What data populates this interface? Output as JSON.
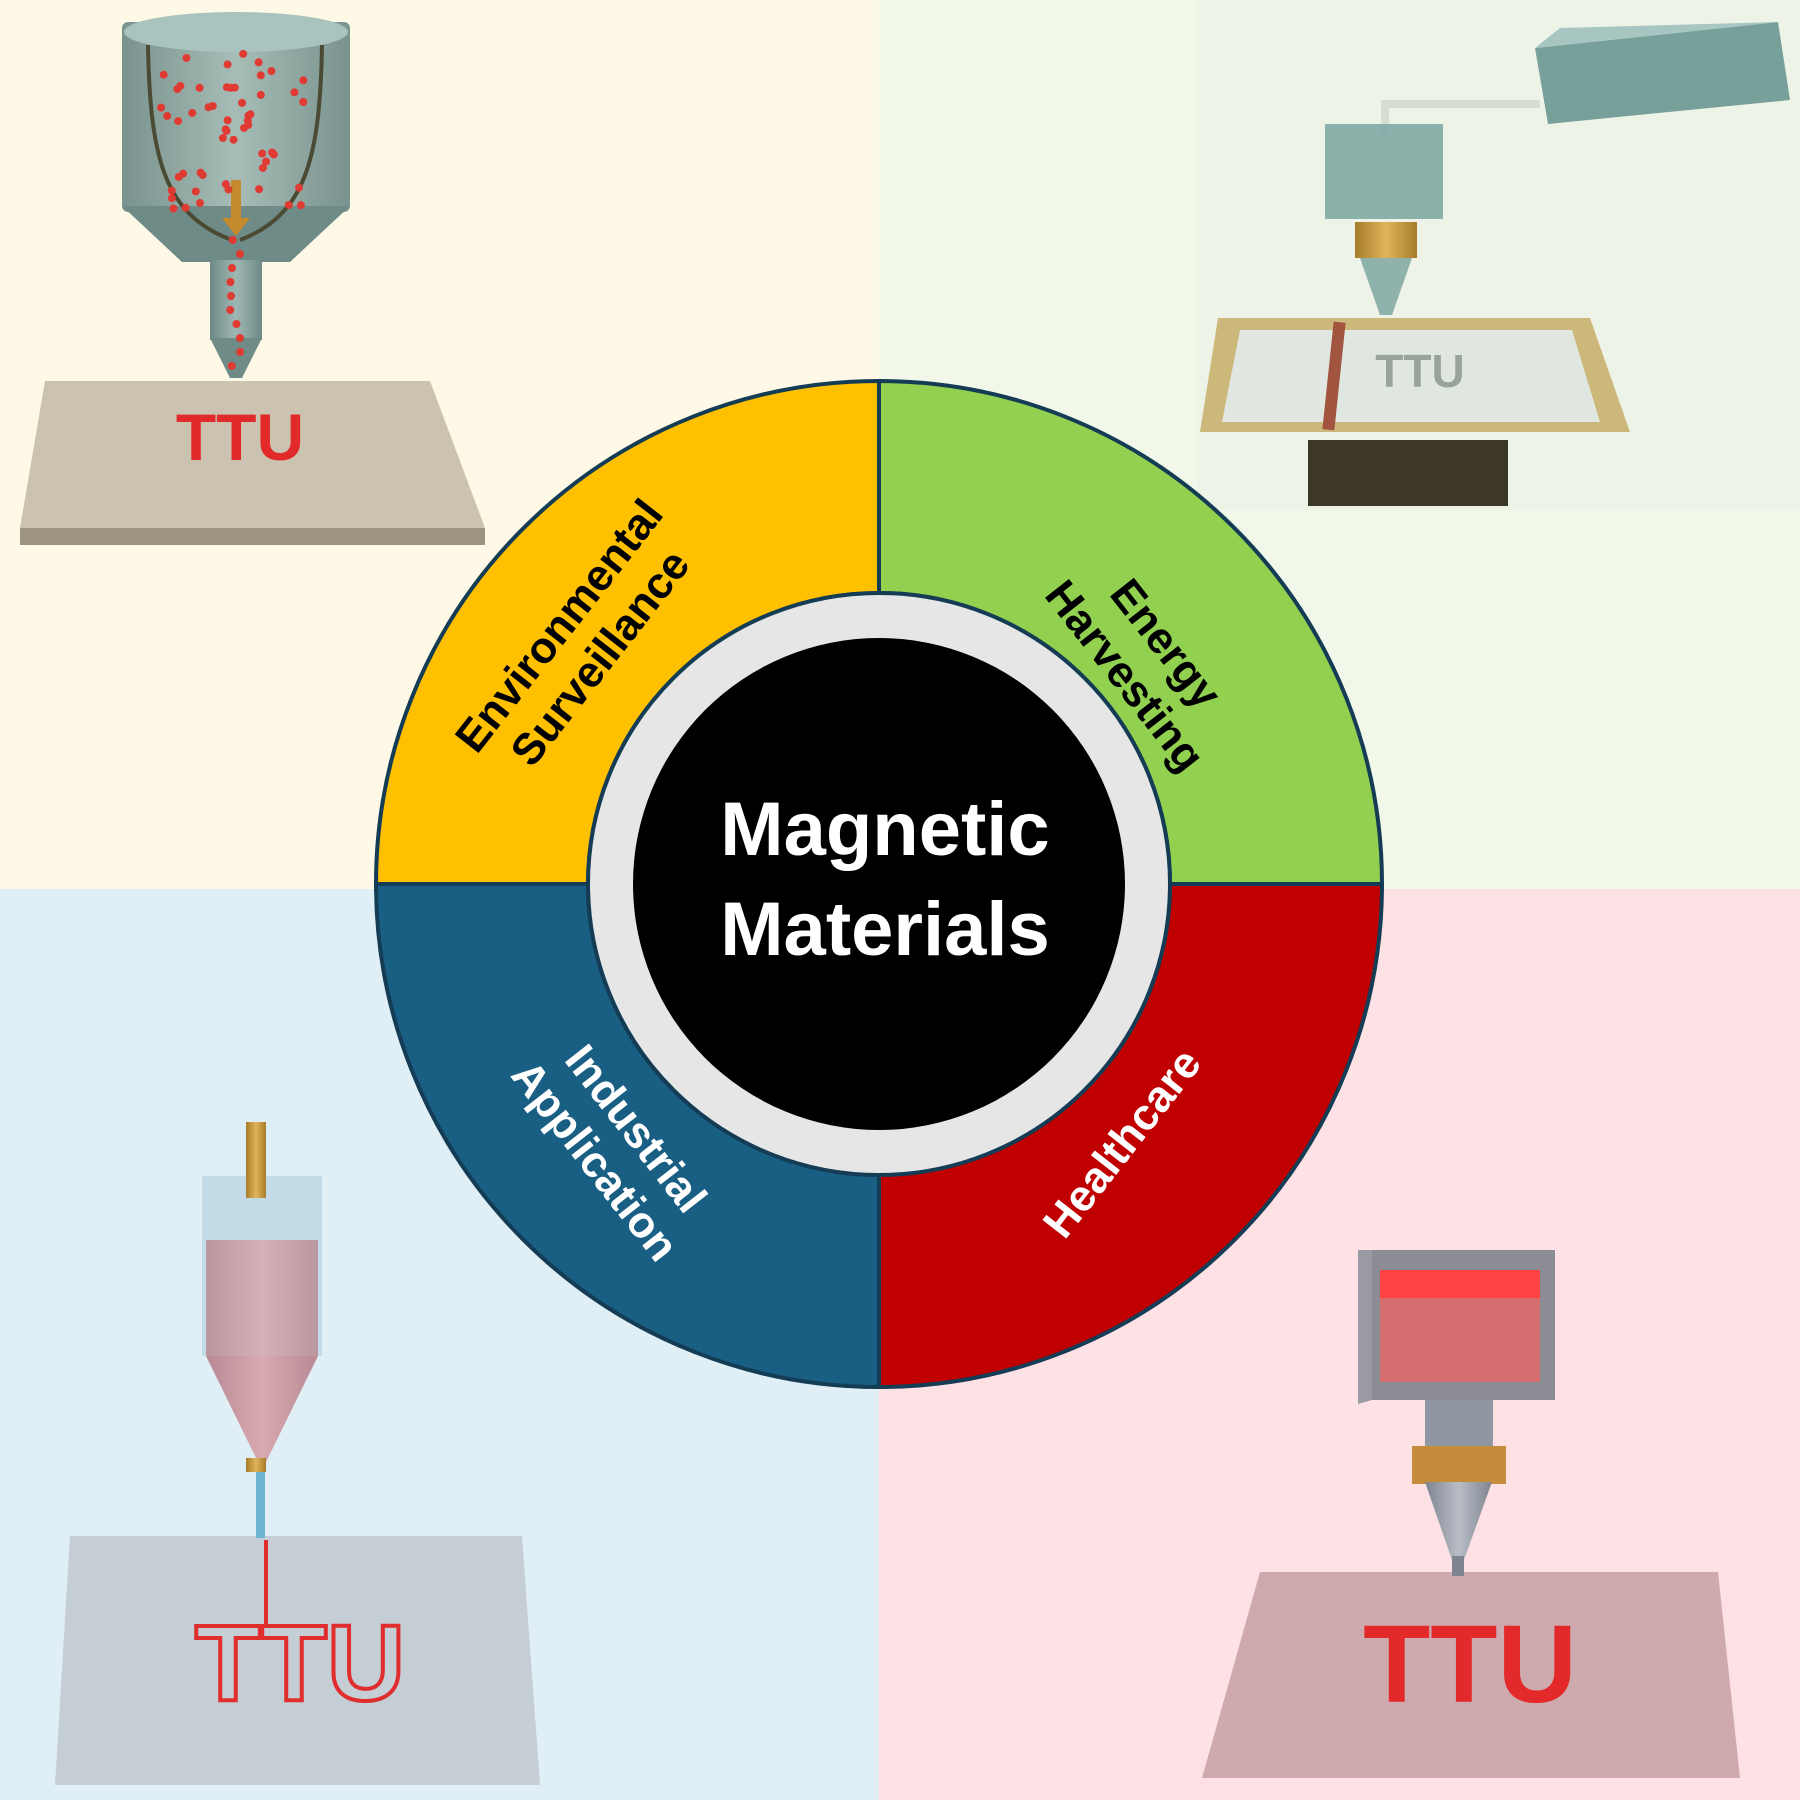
{
  "center": {
    "line1": "Magnetic",
    "line2": "Materials",
    "fill": "#000000",
    "ring": "#e6e6e6"
  },
  "segments": [
    {
      "id": "environmental",
      "line1": "Environmental",
      "line2": "Surveillance",
      "color": "#ffc000",
      "text_color": "#000000"
    },
    {
      "id": "energy",
      "line1": "Energy",
      "line2": "Harvesting",
      "color": "#92d050",
      "text_color": "#000000"
    },
    {
      "id": "healthcare",
      "line1": "Healthcare",
      "line2": "",
      "color": "#c00000",
      "text_color": "#ffffff"
    },
    {
      "id": "industrial",
      "line1": "Industrial",
      "line2": "Application",
      "color": "#195e83",
      "text_color": "#ffffff"
    }
  ],
  "quadrant_backgrounds": {
    "top_left": "#fef9e6",
    "top_right": "#f1f8e9",
    "bottom_left": "#e0eef6",
    "bottom_right": "#fde1e4"
  },
  "printer_labels": {
    "top_left": "TTU",
    "top_right": "TTU",
    "bottom_left": "TTU",
    "bottom_right": "TTU"
  }
}
